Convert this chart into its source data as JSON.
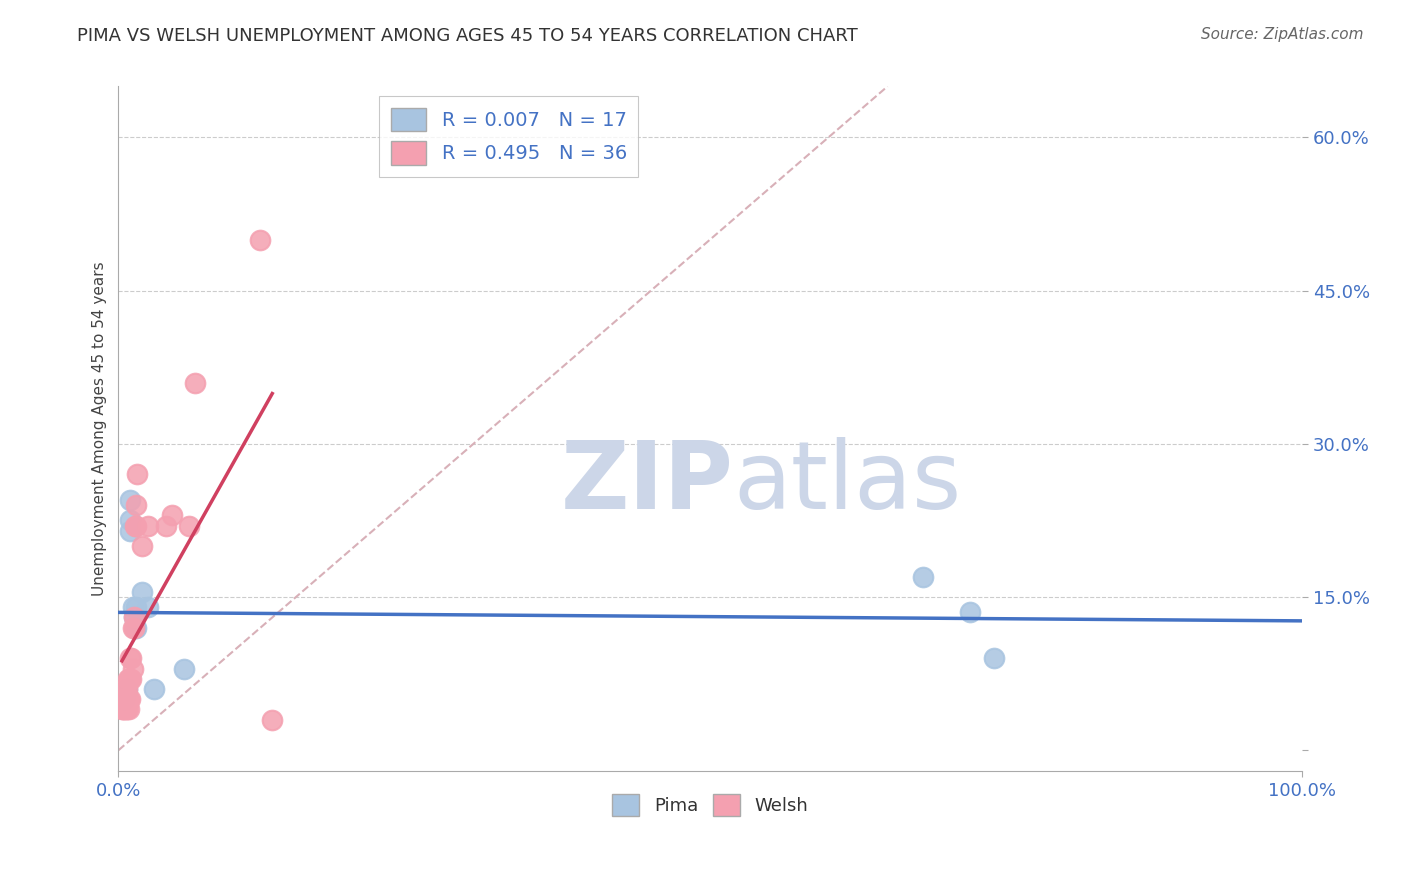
{
  "title": "PIMA VS WELSH UNEMPLOYMENT AMONG AGES 45 TO 54 YEARS CORRELATION CHART",
  "source": "Source: ZipAtlas.com",
  "xlabel": "",
  "ylabel": "Unemployment Among Ages 45 to 54 years",
  "xlim": [
    0,
    1.0
  ],
  "ylim": [
    -0.02,
    0.65
  ],
  "xtick_positions": [
    0.0,
    1.0
  ],
  "xtick_labels": [
    "0.0%",
    "100.0%"
  ],
  "yticks": [
    0.0,
    0.15,
    0.3,
    0.45,
    0.6
  ],
  "ytick_labels": [
    "",
    "15.0%",
    "30.0%",
    "45.0%",
    "60.0%"
  ],
  "pima_color": "#a8c4e0",
  "welsh_color": "#f4a0b0",
  "pima_line_color": "#4472C4",
  "welsh_line_color": "#d04060",
  "diag_line_color": "#d8b0b8",
  "background_color": "#ffffff",
  "watermark_zip": "ZIP",
  "watermark_atlas": "atlas",
  "watermark_color": "#ccd6e8",
  "grid_color": "#cccccc",
  "title_fontsize": 13,
  "label_color": "#4472C4",
  "pima_R": 0.007,
  "pima_N": 17,
  "welsh_R": 0.495,
  "welsh_N": 36,
  "pima_x": [
    0.005,
    0.007,
    0.01,
    0.01,
    0.01,
    0.012,
    0.013,
    0.014,
    0.015,
    0.015,
    0.02,
    0.025,
    0.03,
    0.68,
    0.72,
    0.74,
    0.055
  ],
  "pima_y": [
    0.05,
    0.06,
    0.245,
    0.225,
    0.215,
    0.14,
    0.13,
    0.12,
    0.14,
    0.12,
    0.155,
    0.14,
    0.06,
    0.17,
    0.135,
    0.09,
    0.08
  ],
  "welsh_x": [
    0.003,
    0.004,
    0.004,
    0.005,
    0.005,
    0.005,
    0.006,
    0.006,
    0.007,
    0.007,
    0.008,
    0.008,
    0.009,
    0.009,
    0.009,
    0.01,
    0.01,
    0.01,
    0.011,
    0.011,
    0.012,
    0.012,
    0.013,
    0.013,
    0.014,
    0.015,
    0.015,
    0.016,
    0.02,
    0.025,
    0.04,
    0.045,
    0.06,
    0.065,
    0.12,
    0.13
  ],
  "welsh_y": [
    0.04,
    0.04,
    0.05,
    0.04,
    0.05,
    0.06,
    0.04,
    0.05,
    0.04,
    0.06,
    0.05,
    0.07,
    0.04,
    0.05,
    0.07,
    0.05,
    0.07,
    0.09,
    0.07,
    0.09,
    0.12,
    0.08,
    0.12,
    0.13,
    0.22,
    0.22,
    0.24,
    0.27,
    0.2,
    0.22,
    0.22,
    0.23,
    0.22,
    0.36,
    0.5,
    0.03
  ],
  "pima_trend_x": [
    0.0,
    1.0
  ],
  "pima_trend_y": [
    0.145,
    0.145
  ],
  "welsh_trend_x0": 0.003,
  "welsh_trend_x1": 0.13,
  "diag_line_x": [
    0.0,
    0.65
  ],
  "diag_line_y": [
    0.0,
    0.65
  ]
}
